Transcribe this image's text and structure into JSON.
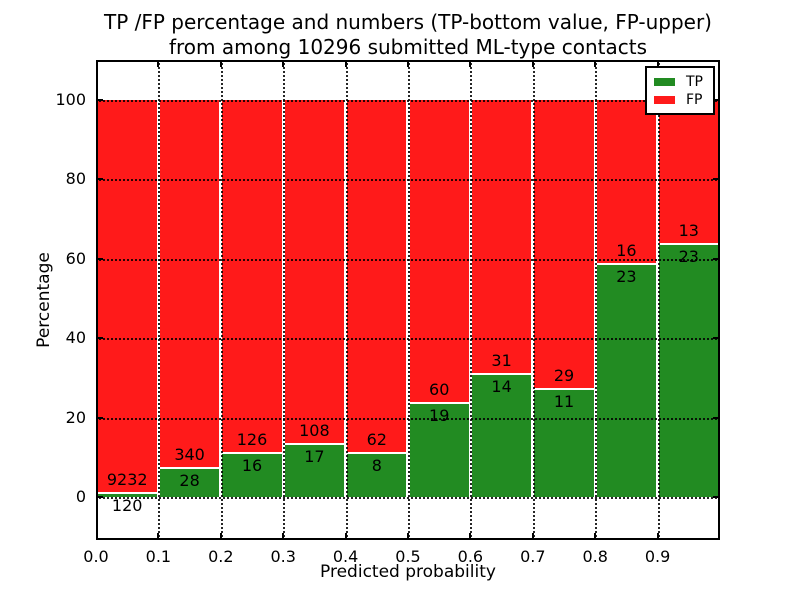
{
  "chart_data": {
    "type": "bar",
    "stacked": true,
    "title_line1": "TP /FP percentage and numbers (TP-bottom value, FP-upper)",
    "title_line2": "from among 10296 submitted ML-type contacts",
    "xlabel": "Predicted probability",
    "ylabel": "Percentage",
    "xlim": [
      0.0,
      1.0
    ],
    "ylim": [
      -11,
      110
    ],
    "grid": "dotted",
    "x_tick_labels": [
      "0.0",
      "0.1",
      "0.2",
      "0.3",
      "0.4",
      "0.5",
      "0.6",
      "0.7",
      "0.8",
      "0.9"
    ],
    "y_tick_values": [
      0,
      20,
      40,
      60,
      80,
      100
    ],
    "y_tick_labels": [
      "0",
      "20",
      "40",
      "60",
      "80",
      "100"
    ],
    "colors": {
      "tp": "#228b22",
      "fp": "#ff1a1a"
    },
    "total_submitted": 10296,
    "bins": [
      {
        "range": "0.0-0.1",
        "tp": 120,
        "fp": 9232,
        "tp_percent": 1.3
      },
      {
        "range": "0.1-0.2",
        "tp": 28,
        "fp": 340,
        "tp_percent": 7.6
      },
      {
        "range": "0.2-0.3",
        "tp": 16,
        "fp": 126,
        "tp_percent": 11.3
      },
      {
        "range": "0.3-0.4",
        "tp": 17,
        "fp": 108,
        "tp_percent": 13.6
      },
      {
        "range": "0.4-0.5",
        "tp": 8,
        "fp": 62,
        "tp_percent": 11.4
      },
      {
        "range": "0.5-0.6",
        "tp": 19,
        "fp": 60,
        "tp_percent": 24.1
      },
      {
        "range": "0.6-0.7",
        "tp": 14,
        "fp": 31,
        "tp_percent": 31.1
      },
      {
        "range": "0.7-0.8",
        "tp": 11,
        "fp": 29,
        "tp_percent": 27.5
      },
      {
        "range": "0.8-0.9",
        "tp": 23,
        "fp": 16,
        "tp_percent": 59.0
      },
      {
        "range": "0.9-1.0",
        "tp": 23,
        "fp": 13,
        "tp_percent": 63.9
      }
    ],
    "series": [
      {
        "name": "TP",
        "color": "#228b22",
        "values": [
          120,
          28,
          16,
          17,
          8,
          19,
          14,
          11,
          23,
          23
        ]
      },
      {
        "name": "FP",
        "color": "#ff1a1a",
        "values": [
          9232,
          340,
          126,
          108,
          62,
          60,
          31,
          29,
          16,
          13
        ]
      }
    ],
    "legend": {
      "position": "upper right",
      "entries": [
        {
          "label": "TP",
          "color": "#228b22"
        },
        {
          "label": "FP",
          "color": "#ff1a1a"
        }
      ]
    }
  }
}
